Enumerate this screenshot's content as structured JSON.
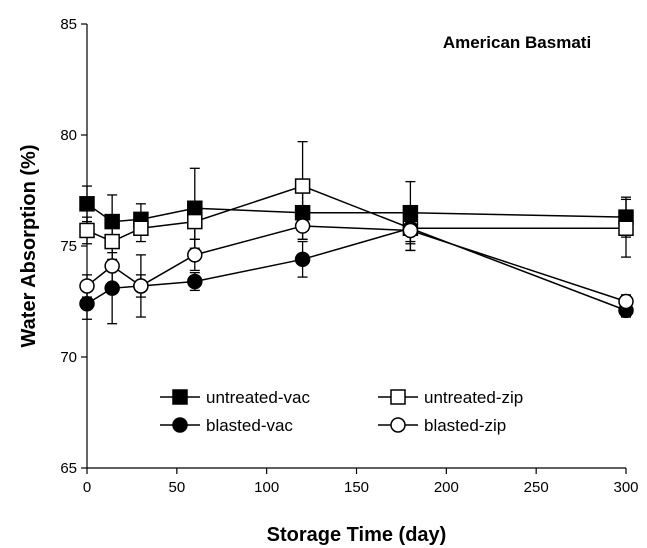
{
  "chart_data": {
    "type": "line",
    "title": "American Basmati",
    "xlabel": "Storage Time (day)",
    "ylabel": "Water Absorption (%)",
    "xlim": [
      0,
      300
    ],
    "ylim": [
      65,
      85
    ],
    "xticks": [
      0,
      50,
      100,
      150,
      200,
      250,
      300
    ],
    "yticks": [
      65,
      70,
      75,
      80,
      85
    ],
    "grid": false,
    "legend_position": "lower-center",
    "series": [
      {
        "name": "untreated-vac",
        "marker": "filled-square",
        "points": [
          {
            "x": 0,
            "y": 76.9,
            "err": 0.8
          },
          {
            "x": 14,
            "y": 76.1,
            "err": 1.2
          },
          {
            "x": 30,
            "y": 76.2,
            "err": 0.7
          },
          {
            "x": 60,
            "y": 76.7,
            "err": 1.8
          },
          {
            "x": 120,
            "y": 76.5,
            "err": 1.2
          },
          {
            "x": 180,
            "y": 76.5,
            "err": 1.4
          },
          {
            "x": 300,
            "y": 76.3,
            "err": 0.9
          }
        ]
      },
      {
        "name": "untreated-zip",
        "marker": "open-square",
        "points": [
          {
            "x": 0,
            "y": 75.7,
            "err": 0.6
          },
          {
            "x": 14,
            "y": 75.2,
            "err": 0.8
          },
          {
            "x": 30,
            "y": 75.8,
            "err": 0.6
          },
          {
            "x": 60,
            "y": 76.1,
            "err": 0.8
          },
          {
            "x": 120,
            "y": 77.7,
            "err": 2.0
          },
          {
            "x": 180,
            "y": 75.8,
            "err": 1.0
          },
          {
            "x": 300,
            "y": 75.8,
            "err": 1.3
          }
        ]
      },
      {
        "name": "blasted-vac",
        "marker": "filled-circle",
        "points": [
          {
            "x": 0,
            "y": 72.4,
            "err": 0.7
          },
          {
            "x": 14,
            "y": 73.1,
            "err": 1.6
          },
          {
            "x": 30,
            "y": 73.2,
            "err": 1.4
          },
          {
            "x": 60,
            "y": 73.4,
            "err": 0.4
          },
          {
            "x": 120,
            "y": 74.4,
            "err": 0.8
          },
          {
            "x": 180,
            "y": 75.8,
            "err": 1.0
          },
          {
            "x": 300,
            "y": 72.1,
            "err": 0.3
          }
        ]
      },
      {
        "name": "blasted-zip",
        "marker": "open-circle",
        "points": [
          {
            "x": 0,
            "y": 73.2,
            "err": 0.5
          },
          {
            "x": 14,
            "y": 74.1,
            "err": 0.8
          },
          {
            "x": 30,
            "y": 73.2,
            "err": 0.5
          },
          {
            "x": 60,
            "y": 74.6,
            "err": 0.7
          },
          {
            "x": 120,
            "y": 75.9,
            "err": 0.6
          },
          {
            "x": 180,
            "y": 75.7,
            "err": 0.5
          },
          {
            "x": 300,
            "y": 72.5,
            "err": 0.3
          }
        ]
      }
    ]
  }
}
